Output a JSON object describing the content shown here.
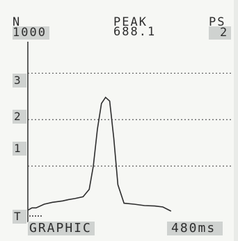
{
  "header": {
    "n_label": "N",
    "n_value": "1000",
    "peak_label": "PEAK",
    "peak_value": "688.1",
    "ps_label": "PS",
    "ps_value": "2"
  },
  "y_axis": {
    "tick_3": "3",
    "tick_2": "2",
    "tick_1": "1",
    "tick_t": "T"
  },
  "footer": {
    "mode": "GRAPHIC",
    "time": "480ms"
  },
  "chart_data": {
    "type": "line",
    "grid": "dotted horizontal lines at 1, 2, 3",
    "ylim": [
      0,
      3.5
    ],
    "x": [
      0,
      0.02,
      0.04,
      0.08,
      0.12,
      0.17,
      0.2,
      0.23,
      0.27,
      0.3,
      0.32,
      0.34,
      0.36,
      0.38,
      0.4,
      0.42,
      0.44,
      0.47,
      0.52,
      0.57,
      0.62,
      0.66,
      0.7
    ],
    "values": [
      0.05,
      0.1,
      0.1,
      0.18,
      0.22,
      0.25,
      0.28,
      0.3,
      0.34,
      0.5,
      1.0,
      1.8,
      2.35,
      2.48,
      2.4,
      1.6,
      0.6,
      0.2,
      0.18,
      0.15,
      0.14,
      0.12,
      0.03
    ],
    "color": "#2d2d2d"
  }
}
